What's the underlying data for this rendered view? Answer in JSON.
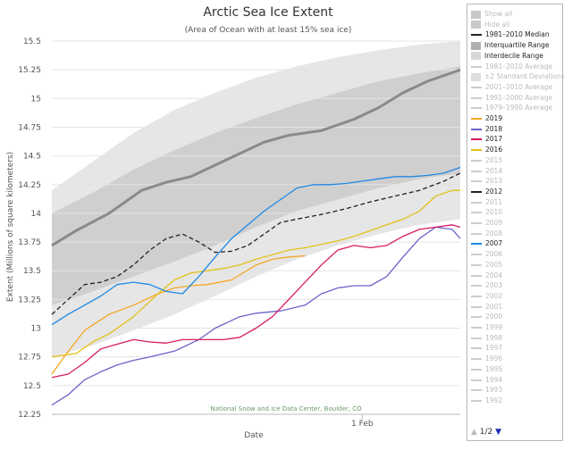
{
  "chart_data": {
    "type": "line",
    "title": "Arctic Sea Ice Extent",
    "subtitle": "(Area of Ocean with at least 15% sea ice)",
    "xlabel": "Date",
    "ylabel": "Extent (Millions of square kilometers)",
    "credit": "National Snow and Ice Data Center, Boulder, CO",
    "ylim": [
      12.25,
      15.5
    ],
    "xlim": [
      0,
      100
    ],
    "yticks": [
      "12.25",
      "12.5",
      "12.75",
      "13",
      "13.25",
      "13.5",
      "13.75",
      "14",
      "14.25",
      "14.5",
      "14.75",
      "15",
      "15.25",
      "15.5"
    ],
    "xticks": [
      {
        "label": "1 Feb",
        "x": 76
      }
    ],
    "grid": true,
    "legend_position": "right",
    "bands": [
      {
        "name": "Interdecile Range",
        "color": "#e6e6e6",
        "x": [
          0,
          10,
          20,
          30,
          40,
          50,
          60,
          70,
          80,
          90,
          100
        ],
        "lower": [
          12.75,
          12.85,
          12.98,
          13.12,
          13.28,
          13.45,
          13.6,
          13.72,
          13.82,
          13.9,
          13.95
        ],
        "upper": [
          14.2,
          14.45,
          14.7,
          14.9,
          15.05,
          15.18,
          15.28,
          15.36,
          15.42,
          15.47,
          15.5
        ]
      },
      {
        "name": "Interquartile Range",
        "color": "#cfcfcf",
        "x": [
          0,
          10,
          20,
          30,
          40,
          50,
          60,
          70,
          80,
          90,
          100
        ],
        "lower": [
          13.2,
          13.32,
          13.45,
          13.58,
          13.72,
          13.88,
          14.02,
          14.12,
          14.22,
          14.3,
          14.35
        ],
        "upper": [
          14.0,
          14.18,
          14.38,
          14.55,
          14.7,
          14.83,
          14.95,
          15.05,
          15.15,
          15.22,
          15.28
        ]
      }
    ],
    "series": [
      {
        "name": "1981–2010 Median",
        "color": "#8a8a8a",
        "width": 3,
        "x": [
          0,
          6,
          14,
          22,
          28,
          34,
          40,
          46,
          52,
          58,
          66,
          74,
          80,
          86,
          92,
          100
        ],
        "y": [
          13.72,
          13.85,
          14.0,
          14.2,
          14.27,
          14.32,
          14.42,
          14.52,
          14.62,
          14.68,
          14.72,
          14.82,
          14.92,
          15.05,
          15.15,
          15.25
        ]
      },
      {
        "name": "2019",
        "color": "#f5a623",
        "width": 1.3,
        "x": [
          0,
          3,
          8,
          14,
          20,
          26,
          30,
          34,
          38,
          44,
          50,
          54,
          58,
          62
        ],
        "y": [
          12.6,
          12.75,
          12.98,
          13.12,
          13.2,
          13.3,
          13.35,
          13.37,
          13.38,
          13.42,
          13.55,
          13.6,
          13.62,
          13.63
        ]
      },
      {
        "name": "2018",
        "color": "#6b63c9",
        "width": 1.3,
        "x": [
          0,
          4,
          8,
          12,
          16,
          20,
          24,
          30,
          36,
          40,
          46,
          50,
          56,
          62,
          66,
          70,
          74,
          78,
          82,
          86,
          90,
          94,
          98,
          100
        ],
        "y": [
          12.33,
          12.42,
          12.55,
          12.62,
          12.68,
          12.72,
          12.75,
          12.8,
          12.9,
          13.0,
          13.1,
          13.13,
          13.15,
          13.2,
          13.3,
          13.35,
          13.37,
          13.37,
          13.45,
          13.62,
          13.78,
          13.88,
          13.86,
          13.78
        ]
      },
      {
        "name": "2017",
        "color": "#d81b60",
        "width": 1.3,
        "x": [
          0,
          4,
          8,
          12,
          16,
          20,
          24,
          28,
          32,
          38,
          42,
          46,
          50,
          54,
          58,
          62,
          66,
          70,
          74,
          78,
          82,
          86,
          90,
          94,
          98,
          100
        ],
        "y": [
          12.57,
          12.6,
          12.7,
          12.82,
          12.86,
          12.9,
          12.88,
          12.87,
          12.9,
          12.9,
          12.9,
          12.92,
          13.0,
          13.1,
          13.25,
          13.4,
          13.55,
          13.68,
          13.72,
          13.7,
          13.72,
          13.8,
          13.86,
          13.88,
          13.9,
          13.88
        ]
      },
      {
        "name": "2016",
        "color": "#e3c21a",
        "width": 1.3,
        "x": [
          0,
          6,
          10,
          14,
          20,
          26,
          30,
          34,
          38,
          42,
          46,
          50,
          54,
          58,
          62,
          66,
          70,
          74,
          78,
          82,
          86,
          90,
          94,
          98,
          100
        ],
        "y": [
          12.75,
          12.78,
          12.88,
          12.95,
          13.1,
          13.3,
          13.42,
          13.48,
          13.5,
          13.52,
          13.55,
          13.6,
          13.64,
          13.68,
          13.7,
          13.73,
          13.76,
          13.8,
          13.85,
          13.9,
          13.95,
          14.02,
          14.15,
          14.2,
          14.2
        ]
      },
      {
        "name": "2012",
        "color": "#222222",
        "width": 1.3,
        "dash": "5,3",
        "x": [
          0,
          4,
          8,
          12,
          16,
          20,
          24,
          28,
          32,
          36,
          40,
          44,
          48,
          52,
          56,
          60,
          66,
          72,
          78,
          84,
          90,
          96,
          100
        ],
        "y": [
          13.12,
          13.25,
          13.38,
          13.4,
          13.45,
          13.55,
          13.68,
          13.78,
          13.82,
          13.75,
          13.66,
          13.67,
          13.72,
          13.82,
          13.92,
          13.95,
          13.99,
          14.04,
          14.1,
          14.15,
          14.2,
          14.28,
          14.35
        ]
      },
      {
        "name": "2007",
        "color": "#1e88e5",
        "width": 1.3,
        "x": [
          0,
          4,
          8,
          12,
          16,
          20,
          24,
          28,
          32,
          36,
          40,
          44,
          48,
          52,
          56,
          60,
          64,
          68,
          72,
          76,
          80,
          84,
          88,
          92,
          96,
          100
        ],
        "y": [
          13.03,
          13.12,
          13.2,
          13.28,
          13.38,
          13.4,
          13.38,
          13.32,
          13.3,
          13.45,
          13.62,
          13.78,
          13.9,
          14.02,
          14.12,
          14.22,
          14.25,
          14.25,
          14.26,
          14.28,
          14.3,
          14.32,
          14.32,
          14.33,
          14.35,
          14.4
        ]
      }
    ]
  },
  "legend": {
    "items": [
      {
        "label": "Show all",
        "kind": "box",
        "color": "#c8c8c8",
        "text_color": "#bbbbbb"
      },
      {
        "label": "Hide all",
        "kind": "box",
        "color": "#c8c8c8",
        "text_color": "#bbbbbb"
      },
      {
        "label": "1981–2010 Median",
        "kind": "dash",
        "color": "#222222",
        "text_color": "#222222"
      },
      {
        "label": "Interquartile Range",
        "kind": "box",
        "color": "#b0b0b0",
        "text_color": "#222222"
      },
      {
        "label": "Interdecile Range",
        "kind": "box",
        "color": "#d8d8d8",
        "text_color": "#222222"
      },
      {
        "label": "1981–2010 Average",
        "kind": "line",
        "color": "#cccccc",
        "text_color": "#bbbbbb"
      },
      {
        "label": "±2 Standard Deviations",
        "kind": "box",
        "color": "#dddddd",
        "text_color": "#bbbbbb"
      },
      {
        "label": "2001–2010 Average",
        "kind": "line",
        "color": "#cccccc",
        "text_color": "#bbbbbb"
      },
      {
        "label": "1991–2000 Average",
        "kind": "line",
        "color": "#cccccc",
        "text_color": "#bbbbbb"
      },
      {
        "label": "1979–1990 Average",
        "kind": "line",
        "color": "#cccccc",
        "text_color": "#bbbbbb"
      },
      {
        "label": "2019",
        "kind": "line",
        "color": "#f5a623",
        "text_color": "#222222"
      },
      {
        "label": "2018",
        "kind": "line",
        "color": "#6b63c9",
        "text_color": "#222222"
      },
      {
        "label": "2017",
        "kind": "line",
        "color": "#d81b60",
        "text_color": "#222222"
      },
      {
        "label": "2016",
        "kind": "line",
        "color": "#e3c21a",
        "text_color": "#222222"
      },
      {
        "label": "2015",
        "kind": "line",
        "color": "#cccccc",
        "text_color": "#bbbbbb"
      },
      {
        "label": "2014",
        "kind": "line",
        "color": "#cccccc",
        "text_color": "#bbbbbb"
      },
      {
        "label": "2013",
        "kind": "line",
        "color": "#cccccc",
        "text_color": "#bbbbbb"
      },
      {
        "label": "2012",
        "kind": "dash",
        "color": "#222222",
        "text_color": "#222222"
      },
      {
        "label": "2011",
        "kind": "line",
        "color": "#cccccc",
        "text_color": "#bbbbbb"
      },
      {
        "label": "2010",
        "kind": "line",
        "color": "#cccccc",
        "text_color": "#bbbbbb"
      },
      {
        "label": "2009",
        "kind": "line",
        "color": "#cccccc",
        "text_color": "#bbbbbb"
      },
      {
        "label": "2008",
        "kind": "line",
        "color": "#cccccc",
        "text_color": "#bbbbbb"
      },
      {
        "label": "2007",
        "kind": "line",
        "color": "#1e88e5",
        "text_color": "#222222"
      },
      {
        "label": "2006",
        "kind": "line",
        "color": "#cccccc",
        "text_color": "#bbbbbb"
      },
      {
        "label": "2005",
        "kind": "line",
        "color": "#cccccc",
        "text_color": "#bbbbbb"
      },
      {
        "label": "2004",
        "kind": "line",
        "color": "#cccccc",
        "text_color": "#bbbbbb"
      },
      {
        "label": "2003",
        "kind": "line",
        "color": "#cccccc",
        "text_color": "#bbbbbb"
      },
      {
        "label": "2002",
        "kind": "line",
        "color": "#cccccc",
        "text_color": "#bbbbbb"
      },
      {
        "label": "2001",
        "kind": "line",
        "color": "#cccccc",
        "text_color": "#bbbbbb"
      },
      {
        "label": "2000",
        "kind": "line",
        "color": "#cccccc",
        "text_color": "#bbbbbb"
      },
      {
        "label": "1999",
        "kind": "line",
        "color": "#cccccc",
        "text_color": "#bbbbbb"
      },
      {
        "label": "1998",
        "kind": "line",
        "color": "#cccccc",
        "text_color": "#bbbbbb"
      },
      {
        "label": "1997",
        "kind": "line",
        "color": "#cccccc",
        "text_color": "#bbbbbb"
      },
      {
        "label": "1996",
        "kind": "line",
        "color": "#cccccc",
        "text_color": "#bbbbbb"
      },
      {
        "label": "1995",
        "kind": "line",
        "color": "#cccccc",
        "text_color": "#bbbbbb"
      },
      {
        "label": "1994",
        "kind": "line",
        "color": "#cccccc",
        "text_color": "#bbbbbb"
      },
      {
        "label": "1993",
        "kind": "line",
        "color": "#cccccc",
        "text_color": "#bbbbbb"
      },
      {
        "label": "1992",
        "kind": "line",
        "color": "#cccccc",
        "text_color": "#bbbbbb"
      }
    ],
    "pager": {
      "label": "1/2",
      "up_icon": "triangle-up-icon",
      "down_icon": "triangle-down-icon"
    }
  }
}
